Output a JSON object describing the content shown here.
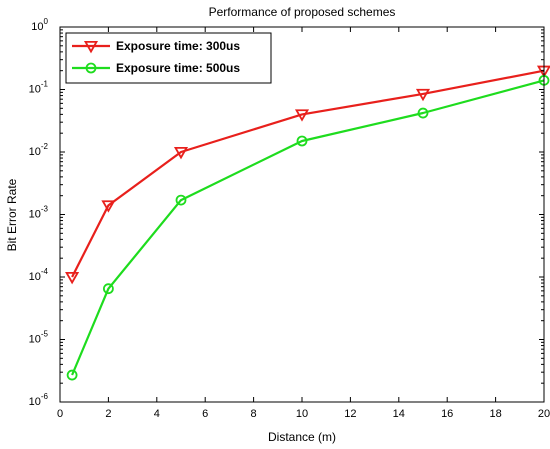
{
  "chart_data": {
    "type": "line",
    "title": "Performance of proposed schemes",
    "xlabel": "Distance (m)",
    "ylabel": "Bit Error Rate",
    "xlim": [
      0,
      20
    ],
    "ylim": [
      1e-06,
      1
    ],
    "yscale": "log",
    "grid": false,
    "legend_position": "top-left",
    "x_ticks": [
      0,
      2,
      4,
      6,
      8,
      10,
      12,
      14,
      16,
      18,
      20
    ],
    "y_tick_exponents": [
      0,
      -1,
      -2,
      -3,
      -4,
      -5,
      -6
    ],
    "x": [
      0.5,
      2,
      5,
      10,
      15,
      20
    ],
    "series": [
      {
        "name": "Exposure time: 300us",
        "color": "#e8201c",
        "marker": "triangle-down",
        "values": [
          0.0001,
          0.0014,
          0.01,
          0.04,
          0.085,
          0.2
        ]
      },
      {
        "name": "Exposure time: 500us",
        "color": "#1edc1e",
        "marker": "circle",
        "values": [
          2.7e-06,
          6.5e-05,
          0.0017,
          0.015,
          0.042,
          0.14
        ]
      }
    ]
  }
}
